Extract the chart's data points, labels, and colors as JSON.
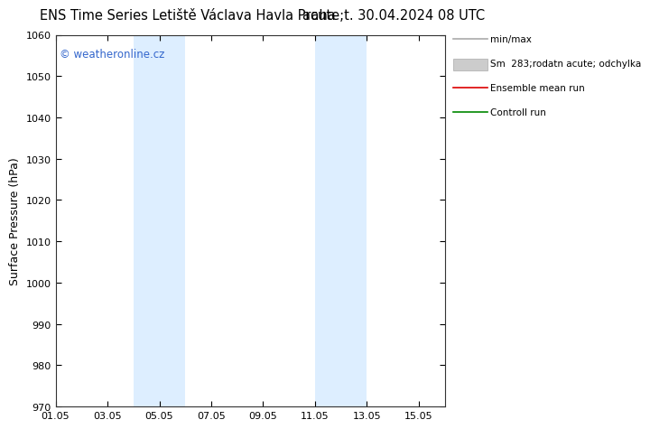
{
  "title_left": "ENS Time Series Letiště Václava Havla Praha",
  "title_right": "acute;t. 30.04.2024 08 UTC",
  "ylabel": "Surface Pressure (hPa)",
  "ylim": [
    970,
    1060
  ],
  "yticks": [
    970,
    980,
    990,
    1000,
    1010,
    1020,
    1030,
    1040,
    1050,
    1060
  ],
  "xlim_start": "2024-05-01",
  "xlim_end": "2024-05-16",
  "xtick_labels": [
    "01.05",
    "03.05",
    "05.05",
    "07.05",
    "09.05",
    "11.05",
    "13.05",
    "15.05"
  ],
  "xtick_dates": [
    "2024-05-01",
    "2024-05-03",
    "2024-05-05",
    "2024-05-07",
    "2024-05-09",
    "2024-05-11",
    "2024-05-13",
    "2024-05-15"
  ],
  "blue_bands": [
    {
      "start": "2024-05-04",
      "end": "2024-05-06"
    },
    {
      "start": "2024-05-11",
      "end": "2024-05-13"
    }
  ],
  "band_color": "#ddeeff",
  "background_color": "#ffffff",
  "watermark": "© weatheronline.cz",
  "watermark_color": "#3366cc",
  "legend_labels": [
    "min/max",
    "Sm  283;rodatn acute; odchylka",
    "Ensemble mean run",
    "Controll run"
  ],
  "legend_colors": [
    "#aaaaaa",
    "#cccccc",
    "#dd0000",
    "#008800"
  ],
  "title_fontsize": 10.5,
  "tick_fontsize": 8,
  "ylabel_fontsize": 9,
  "watermark_fontsize": 8.5
}
